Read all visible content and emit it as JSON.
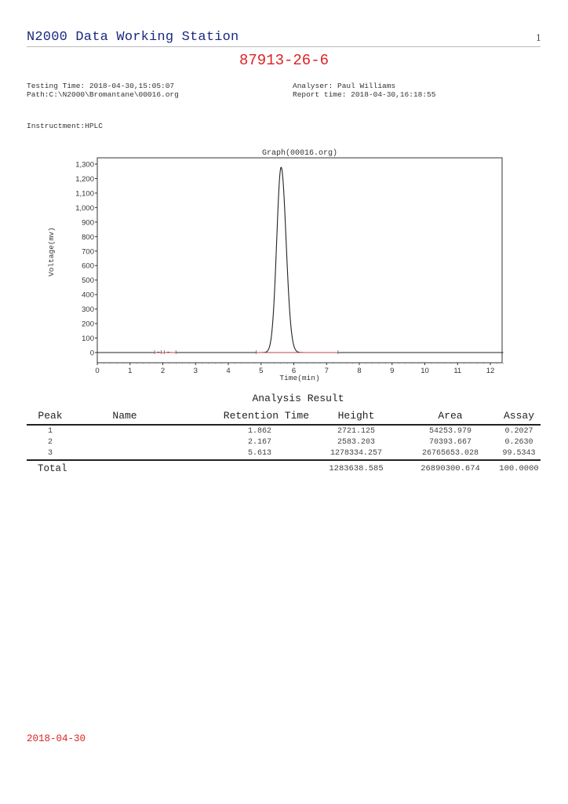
{
  "header": {
    "title": "N2000 Data Working Station",
    "page_number": "1",
    "sample_id": "87913-26-6"
  },
  "meta": {
    "testing_time": "Testing Time: 2018-04-30,15:05:07",
    "path": "Path:C:\\N2000\\Bromantane\\00016.org",
    "analyser": "Analyser: Paul Williams",
    "report_time": "Report time: 2018-04-30,16:18:55",
    "instrument": "Instructment:HPLC"
  },
  "chart_data": {
    "type": "line",
    "title": "Graph(00016.org)",
    "xlabel": "Time(min)",
    "ylabel": "Voltage(mv)",
    "xlim": [
      0,
      12.4
    ],
    "ylim": [
      -60,
      1330
    ],
    "x_ticks": [
      0,
      1,
      2,
      3,
      4,
      5,
      6,
      7,
      8,
      9,
      10,
      11,
      12
    ],
    "y_ticks": [
      0,
      100,
      200,
      300,
      400,
      500,
      600,
      700,
      800,
      900,
      1000,
      1100,
      1200,
      1300
    ],
    "y_tick_labels": [
      "0",
      "100",
      "200",
      "300",
      "400",
      "500",
      "600",
      "700",
      "800",
      "900",
      "1,000",
      "1,100",
      "1,200",
      "1,300"
    ],
    "grid": false,
    "legend": null,
    "series": [
      {
        "name": "chromatogram",
        "color": "#222222",
        "peaks": [
          {
            "time": 1.862,
            "height_mv": 2.7
          },
          {
            "time": 2.167,
            "height_mv": 2.6
          },
          {
            "time": 5.613,
            "height_mv": 1278
          }
        ]
      },
      {
        "name": "baseline",
        "color": "#c04050",
        "x": [
          1.75,
          2.4,
          4.85,
          7.35
        ],
        "y": [
          0,
          0,
          0,
          0
        ]
      }
    ]
  },
  "results": {
    "title": "Analysis Result",
    "columns": [
      "Peak",
      "Name",
      "Retention Time",
      "Height",
      "Area",
      "Assay"
    ],
    "rows": [
      {
        "peak": "1",
        "name": "",
        "retention_time": "1.862",
        "height": "2721.125",
        "area": "54253.979",
        "assay": "0.2027"
      },
      {
        "peak": "2",
        "name": "",
        "retention_time": "2.167",
        "height": "2583.203",
        "area": "70393.667",
        "assay": "0.2630"
      },
      {
        "peak": "3",
        "name": "",
        "retention_time": "5.613",
        "height": "1278334.257",
        "area": "26765653.028",
        "assay": "99.5343"
      }
    ],
    "total": {
      "label": "Total",
      "height": "1283638.585",
      "area": "26890300.674",
      "assay": "100.0000"
    }
  },
  "footer": {
    "date": "2018-04-30"
  }
}
